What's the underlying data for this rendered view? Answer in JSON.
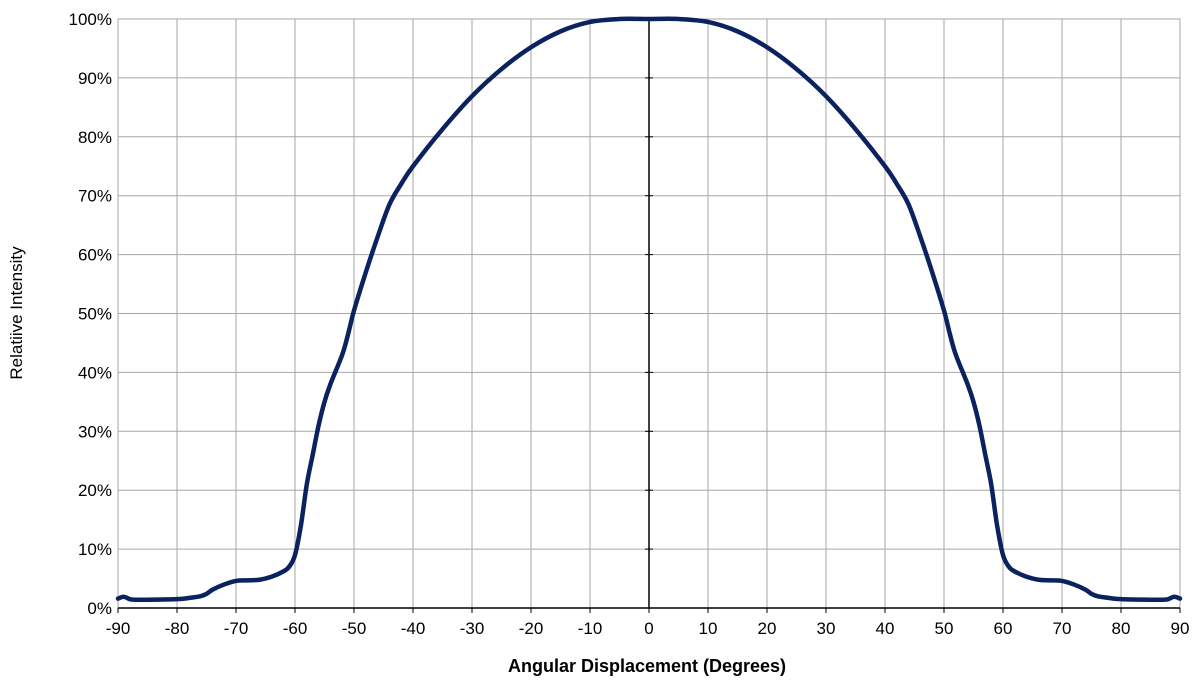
{
  "chart_data": {
    "type": "line",
    "title": "",
    "xlabel": "Angular Displacement (Degrees)",
    "ylabel": "Relatiive Intensity",
    "xlim": [
      -90,
      90
    ],
    "ylim": [
      0,
      100
    ],
    "x_ticks": [
      -90,
      -80,
      -70,
      -60,
      -50,
      -40,
      -30,
      -20,
      -10,
      0,
      10,
      20,
      30,
      40,
      50,
      60,
      70,
      80,
      90
    ],
    "x_tick_labels": [
      "-90",
      "-80",
      "-70",
      "-60",
      "-50",
      "-40",
      "-30",
      "-20",
      "-10",
      "0",
      "10",
      "20",
      "30",
      "40",
      "50",
      "60",
      "70",
      "80",
      "90"
    ],
    "y_ticks": [
      0,
      10,
      20,
      30,
      40,
      50,
      60,
      70,
      80,
      90,
      100
    ],
    "y_tick_labels": [
      "0%",
      "10%",
      "20%",
      "30%",
      "40%",
      "50%",
      "60%",
      "70%",
      "80%",
      "90%",
      "100%"
    ],
    "grid": true,
    "legend": "none",
    "colors": {
      "line": "#0b2260",
      "grid": "#a6a6a6",
      "axis": "#000000"
    },
    "series": [
      {
        "x": [
          -90,
          -89,
          -88,
          -87,
          -85,
          -80,
          -78,
          -76,
          -75,
          -74,
          -72,
          -70,
          -68,
          -66,
          -64,
          -62,
          -61,
          -60,
          -59,
          -58,
          -57,
          -56,
          -55,
          -54,
          -52,
          -51,
          -50,
          -48,
          -46,
          -44,
          -42,
          -40,
          -35,
          -30,
          -25,
          -20,
          -15,
          -10,
          -5,
          0,
          5,
          10,
          15,
          20,
          25,
          30,
          35,
          40,
          42,
          44,
          46,
          48,
          50,
          51,
          52,
          54,
          55,
          56,
          57,
          58,
          59,
          60,
          61,
          62,
          64,
          66,
          68,
          70,
          72,
          74,
          75,
          76,
          78,
          80,
          85,
          87,
          88,
          89,
          90
        ],
        "y": [
          1.6,
          1.9,
          1.5,
          1.4,
          1.4,
          1.5,
          1.7,
          2.0,
          2.4,
          3.1,
          4.0,
          4.6,
          4.7,
          4.8,
          5.3,
          6.2,
          7.0,
          9.0,
          14.0,
          21.0,
          26.0,
          31.0,
          35.0,
          38.0,
          43.0,
          46.5,
          50.5,
          57.0,
          63.0,
          68.5,
          72.0,
          75.0,
          81.3,
          86.9,
          91.5,
          95.2,
          97.9,
          99.5,
          100.0,
          100.0,
          100.0,
          99.5,
          97.9,
          95.2,
          91.5,
          86.9,
          81.3,
          75.0,
          72.0,
          68.5,
          63.0,
          57.0,
          50.5,
          46.5,
          43.0,
          38.0,
          35.0,
          31.0,
          26.0,
          21.0,
          14.0,
          9.0,
          7.0,
          6.2,
          5.3,
          4.8,
          4.7,
          4.6,
          4.0,
          3.1,
          2.4,
          2.0,
          1.7,
          1.5,
          1.4,
          1.4,
          1.5,
          1.9,
          1.6
        ]
      }
    ]
  }
}
